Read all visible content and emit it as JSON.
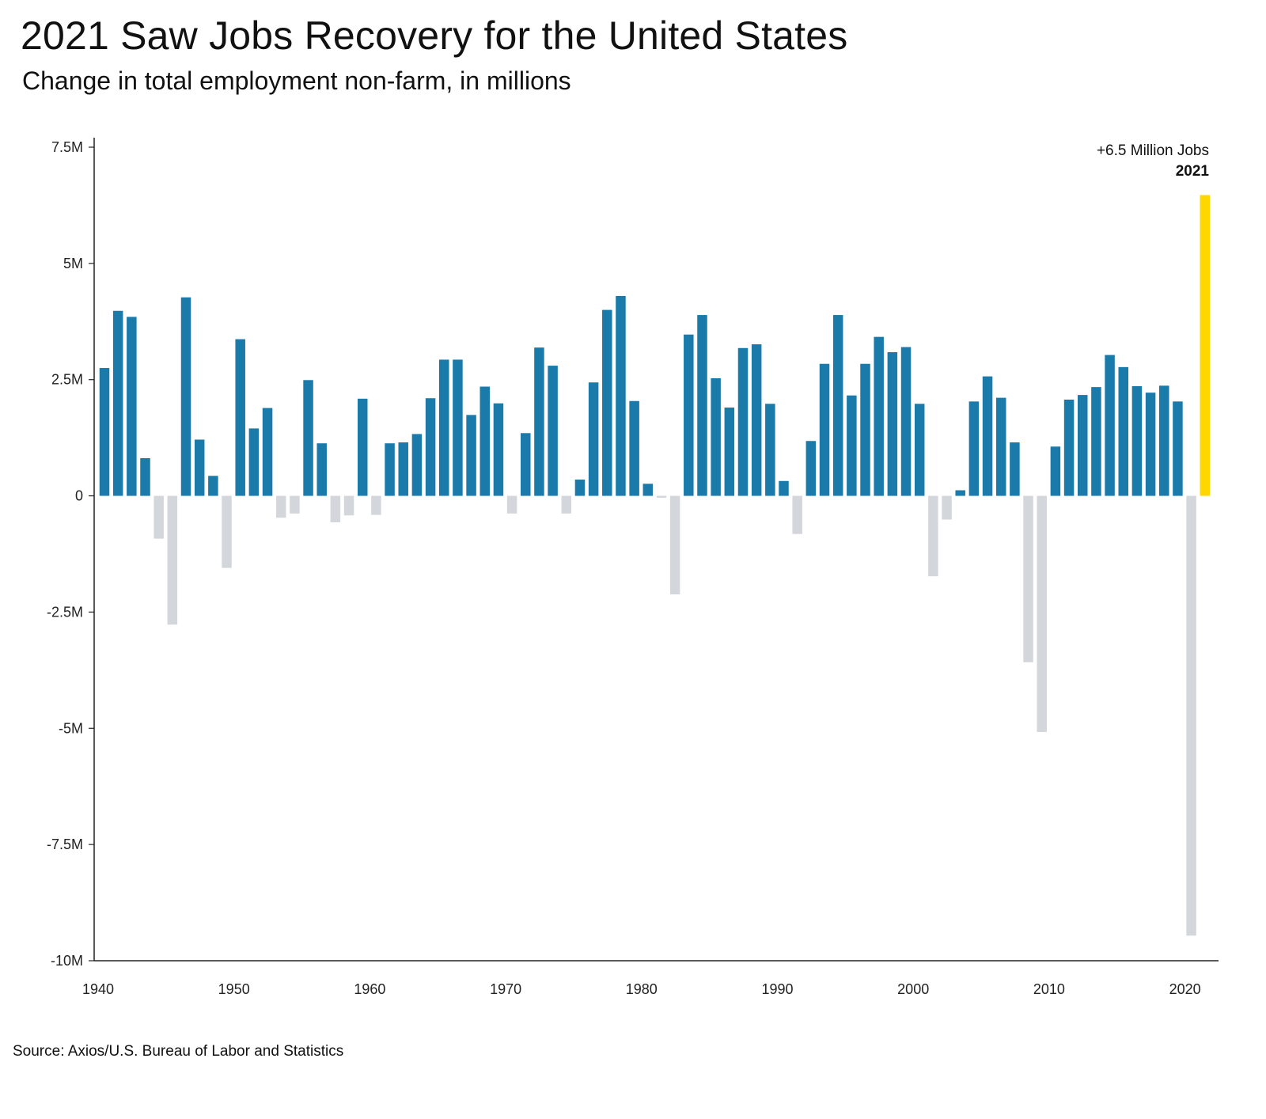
{
  "title": "2021 Saw Jobs Recovery for the United States",
  "subtitle": "Change in total employment non-farm, in millions",
  "source": "Source: Axios/U.S. Bureau of Labor and Statistics",
  "colors": {
    "positive": "#1a7bab",
    "negative": "#d3d6db",
    "highlight": "#ffd700"
  },
  "chart_data": {
    "type": "bar",
    "title": "2021 Saw Jobs Recovery for the United States",
    "subtitle": "Change in total employment non-farm, in millions",
    "ylim": [
      -10,
      7.5
    ],
    "y_unit": "millions",
    "y_ticks": [
      {
        "value": 7.5,
        "label": "7.5M"
      },
      {
        "value": 5,
        "label": "5M"
      },
      {
        "value": 2.5,
        "label": "2.5M"
      },
      {
        "value": 0,
        "label": "0"
      },
      {
        "value": -2.5,
        "label": "-2.5M"
      },
      {
        "value": -5,
        "label": "-5M"
      },
      {
        "value": -7.5,
        "label": "-7.5M"
      },
      {
        "value": -10,
        "label": "-10M"
      }
    ],
    "x_ticks": [
      1940,
      1950,
      1960,
      1970,
      1980,
      1990,
      2000,
      2010,
      2020
    ],
    "annotation": {
      "text": "+6.5 Million Jobs",
      "year_label": "2021"
    },
    "highlight_year": 2021,
    "grid": false,
    "years": [
      1940,
      1941,
      1942,
      1943,
      1944,
      1945,
      1946,
      1947,
      1948,
      1949,
      1950,
      1951,
      1952,
      1953,
      1954,
      1955,
      1956,
      1957,
      1958,
      1959,
      1960,
      1961,
      1962,
      1963,
      1964,
      1965,
      1966,
      1967,
      1968,
      1969,
      1970,
      1971,
      1972,
      1973,
      1974,
      1975,
      1976,
      1977,
      1978,
      1979,
      1980,
      1981,
      1982,
      1983,
      1984,
      1985,
      1986,
      1987,
      1988,
      1989,
      1990,
      1991,
      1992,
      1993,
      1994,
      1995,
      1996,
      1997,
      1998,
      1999,
      2000,
      2001,
      2002,
      2003,
      2004,
      2005,
      2006,
      2007,
      2008,
      2009,
      2010,
      2011,
      2012,
      2013,
      2014,
      2015,
      2016,
      2017,
      2018,
      2019,
      2020,
      2021
    ],
    "values": [
      2.75,
      3.98,
      3.85,
      0.81,
      -0.92,
      -2.77,
      4.27,
      1.21,
      0.43,
      -1.55,
      3.37,
      1.45,
      1.89,
      -0.47,
      -0.38,
      2.49,
      1.13,
      -0.57,
      -0.42,
      2.09,
      -0.41,
      1.13,
      1.15,
      1.33,
      2.1,
      2.93,
      2.93,
      1.74,
      2.35,
      1.99,
      -0.38,
      1.35,
      3.19,
      2.8,
      -0.38,
      0.35,
      2.44,
      4.0,
      4.3,
      2.04,
      0.26,
      -0.04,
      -2.12,
      3.47,
      3.89,
      2.53,
      1.9,
      3.18,
      3.26,
      1.98,
      0.32,
      -0.82,
      1.18,
      2.84,
      3.89,
      2.16,
      2.84,
      3.42,
      3.09,
      3.2,
      1.98,
      -1.73,
      -0.51,
      0.12,
      2.03,
      2.57,
      2.11,
      1.15,
      -3.58,
      -5.08,
      1.06,
      2.07,
      2.17,
      2.34,
      3.03,
      2.77,
      2.36,
      2.22,
      2.37,
      2.03,
      -9.46,
      6.47
    ]
  }
}
